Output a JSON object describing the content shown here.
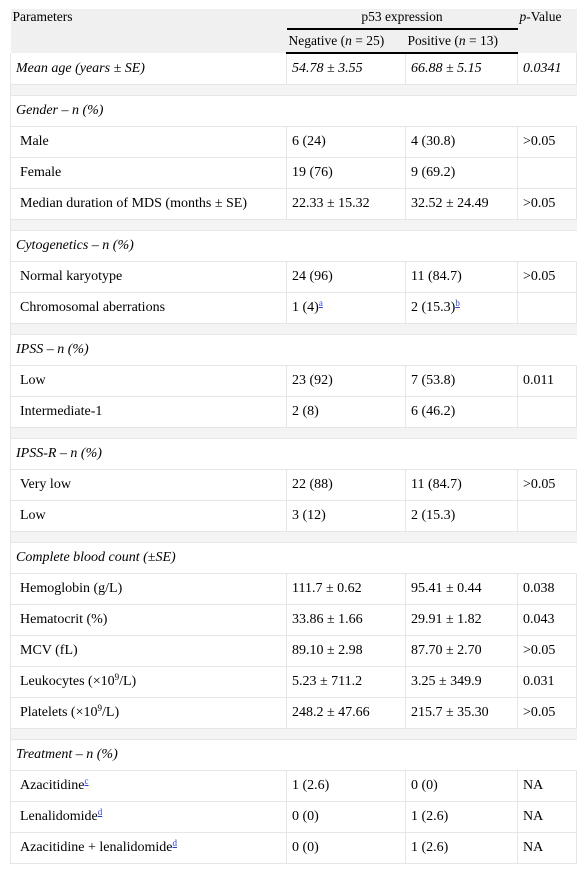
{
  "header": {
    "parameters": "Parameters",
    "p53": "p53 expression",
    "pvalue_p": "p",
    "pvalue_rest": "-Value",
    "negative_pre": "Negative (",
    "negative_n": "n",
    "negative_post": " = 25)",
    "positive_pre": "Positive (",
    "positive_n": "n",
    "positive_post": " = 13)"
  },
  "mean_age": {
    "label": "Mean age (years ± SE)",
    "negative": "54.78 ± 3.55",
    "positive": "66.88 ± 5.15",
    "p": "0.0341"
  },
  "gender": {
    "title": "Gender – n (%)",
    "rows": [
      {
        "label": "Male",
        "negative": "6 (24)",
        "positive": "4 (30.8)",
        "p": ">0.05"
      },
      {
        "label": "Female",
        "negative": "19 (76)",
        "positive": "9 (69.2)",
        "p": ""
      },
      {
        "label": "Median duration of MDS (months ± SE)",
        "negative": "22.33 ± 15.32",
        "positive": "32.52 ± 24.49",
        "p": ">0.05"
      }
    ]
  },
  "cytogenetics": {
    "title": "Cytogenetics – n (%)",
    "rows": [
      {
        "label": "Normal karyotype",
        "negative": "24 (96)",
        "positive": "11 (84.7)",
        "p": ">0.05"
      },
      {
        "label": "Chromosomal aberrations",
        "negative": "1 (4)",
        "negative_fn": "a",
        "positive": "2 (15.3)",
        "positive_fn": "b",
        "p": ""
      }
    ]
  },
  "ipss": {
    "title": "IPSS – n (%)",
    "rows": [
      {
        "label": "Low",
        "negative": "23 (92)",
        "positive": "7 (53.8)",
        "p": "0.011"
      },
      {
        "label": "Intermediate-1",
        "negative": "2 (8)",
        "positive": "6 (46.2)",
        "p": ""
      }
    ]
  },
  "ipssr": {
    "title": "IPSS-R – n (%)",
    "rows": [
      {
        "label": "Very low",
        "negative": "22 (88)",
        "positive": "11 (84.7)",
        "p": ">0.05"
      },
      {
        "label": "Low",
        "negative": "3 (12)",
        "positive": "2 (15.3)",
        "p": ""
      }
    ]
  },
  "cbc": {
    "title": "Complete blood count (±SE)",
    "rows": [
      {
        "label": "Hemoglobin (g/L)",
        "negative": "111.7 ± 0.62",
        "positive": "95.41 ± 0.44",
        "p": "0.038"
      },
      {
        "label": "Hematocrit (%)",
        "negative": "33.86 ± 1.66",
        "positive": "29.91 ± 1.82",
        "p": "0.043"
      },
      {
        "label": "MCV (fL)",
        "negative": "89.10 ± 2.98",
        "positive": "87.70 ± 2.70",
        "p": ">0.05"
      },
      {
        "label_pre": "Leukocytes (×10",
        "label_sup": "9",
        "label_post": "/L)",
        "negative": "5.23 ± 711.2",
        "positive": "3.25 ± 349.9",
        "p": "0.031"
      },
      {
        "label_pre": "Platelets (×10",
        "label_sup": "9",
        "label_post": "/L)",
        "negative": "248.2 ± 47.66",
        "positive": "215.7 ± 35.30",
        "p": ">0.05"
      }
    ]
  },
  "treatment": {
    "title": "Treatment – n (%)",
    "rows": [
      {
        "label": "Azacitidine",
        "fn": "c",
        "negative": "1 (2.6)",
        "positive": "0 (0)",
        "p": "NA"
      },
      {
        "label": "Lenalidomide",
        "fn": "d",
        "negative": "0 (0)",
        "positive": "1 (2.6)",
        "p": "NA"
      },
      {
        "label": "Azacitidine + lenalidomide",
        "fn": "d",
        "negative": "0 (0)",
        "positive": "1 (2.6)",
        "p": "NA"
      }
    ]
  }
}
